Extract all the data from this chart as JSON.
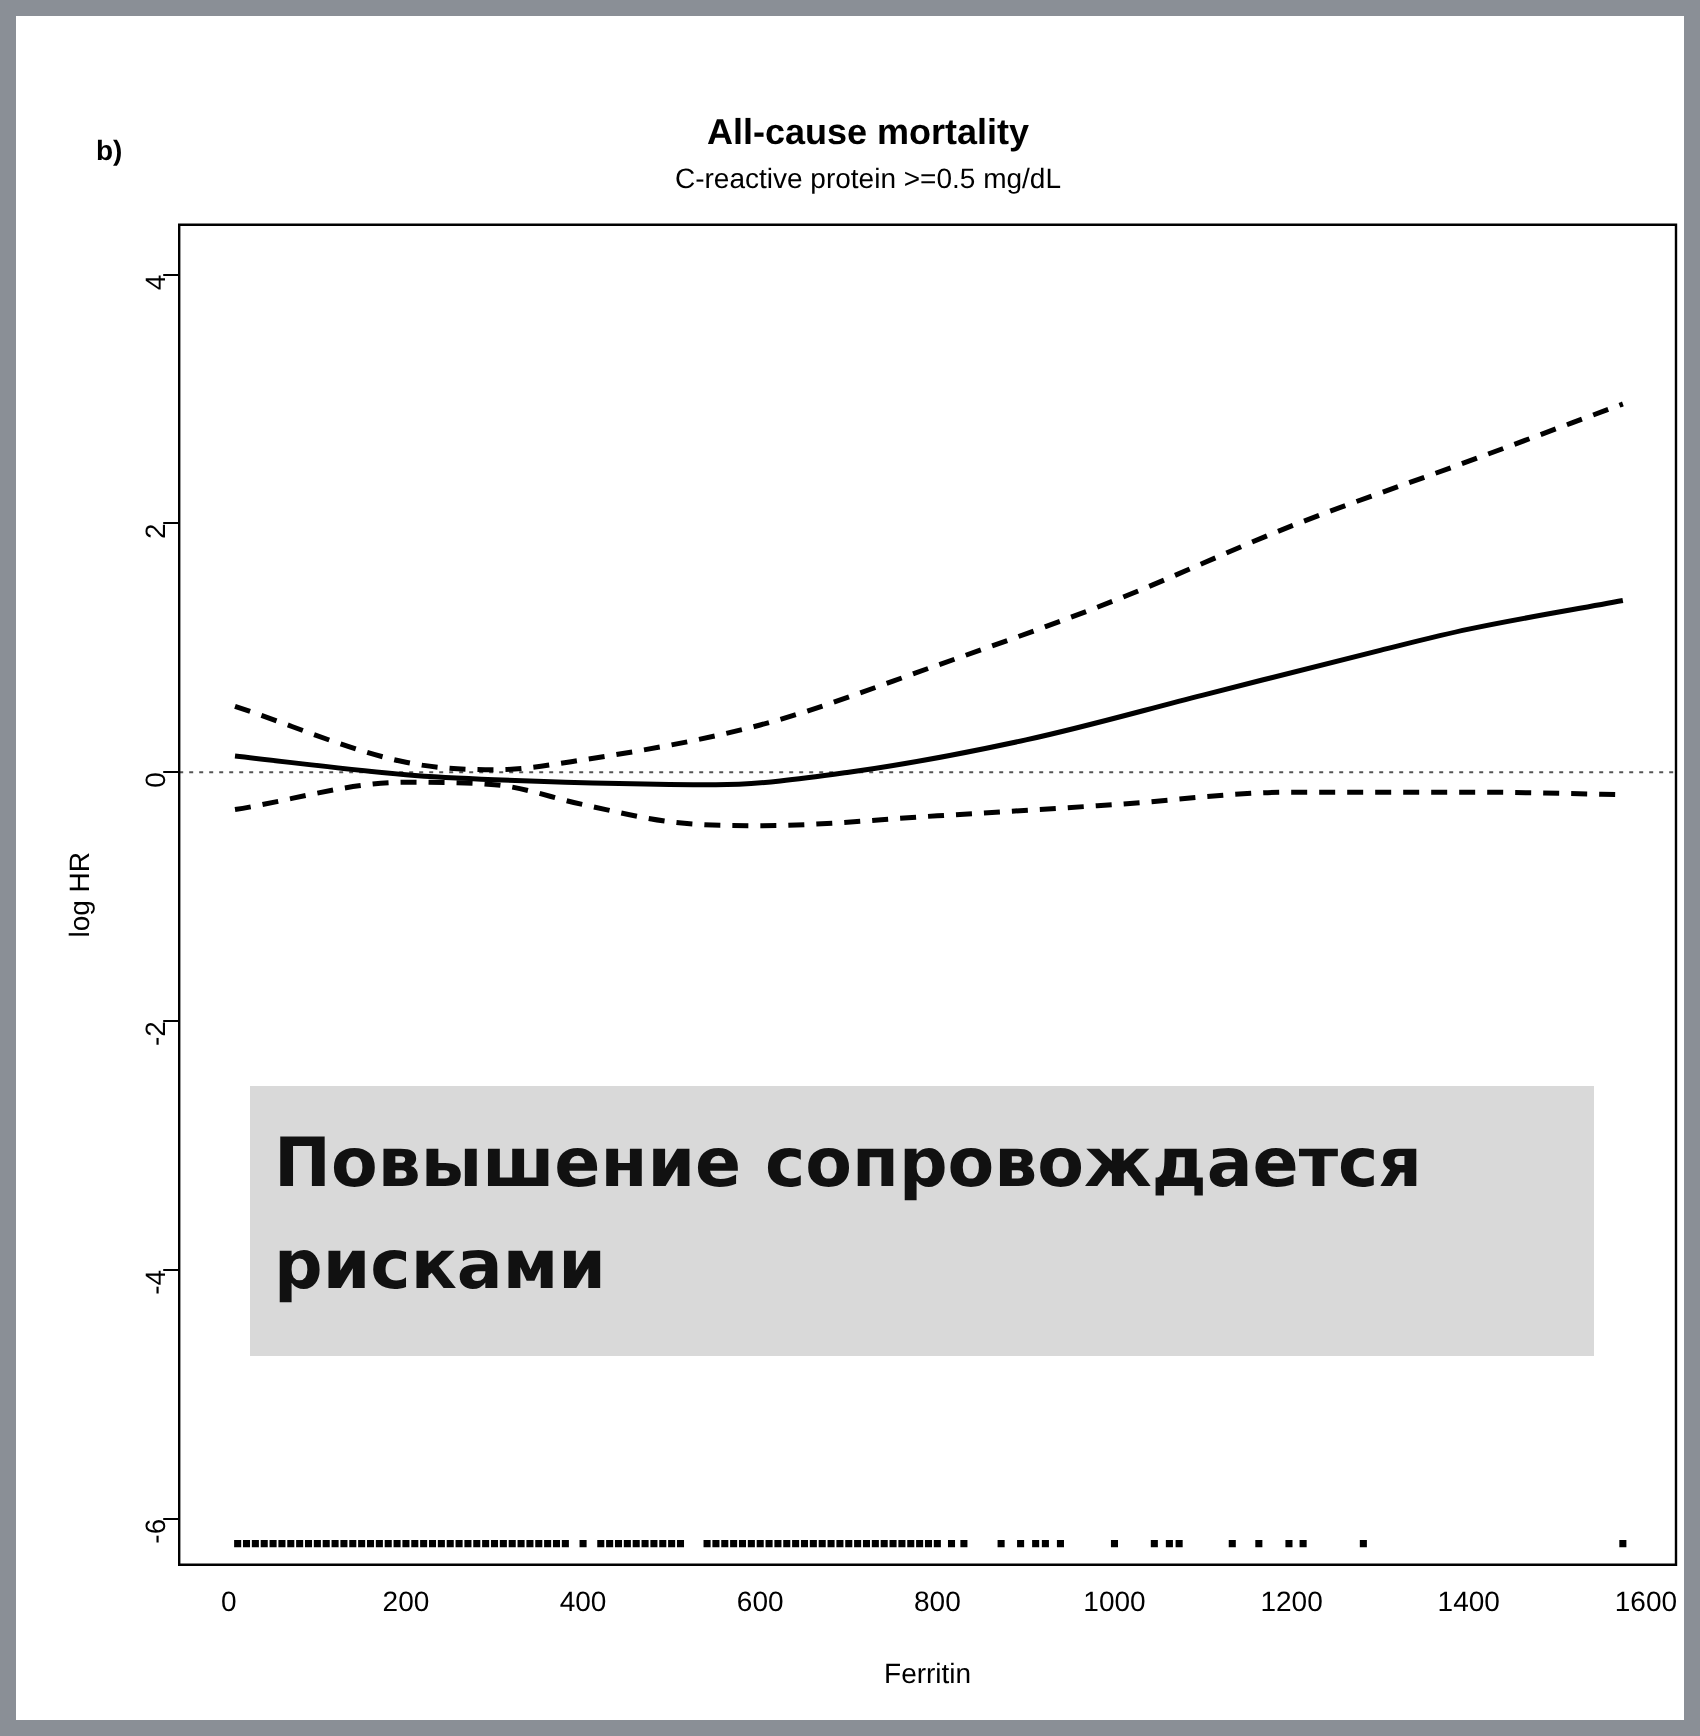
{
  "chart_data": {
    "type": "line",
    "title": "All-cause mortality",
    "subtitle": "C-reactive protein >=0.5 mg/dL",
    "xlabel": "Ferritin",
    "ylabel": "log HR",
    "xlim": [
      -56,
      1634
    ],
    "xticks": [
      0,
      200,
      400,
      600,
      800,
      1000,
      1200,
      1400,
      1600
    ],
    "ylim": [
      -6.37,
      4.4
    ],
    "yticks": [
      -6,
      -4,
      -2,
      0,
      2,
      4
    ],
    "grid": false,
    "legend": false,
    "ref_lines": [
      {
        "axis": "y",
        "value": 0,
        "line_style": "dotted",
        "color": "#555555"
      }
    ],
    "annotations": [
      "b)",
      "Повышение сопровождается рисками"
    ],
    "series": [
      {
        "color": "#000000",
        "line_style": "solid",
        "x": [
          7,
          200,
          300,
          550,
          700,
          900,
          1100,
          1300,
          1400,
          1574
        ],
        "values": [
          0.13,
          -0.02,
          -0.06,
          -0.1,
          0,
          0.26,
          0.62,
          0.98,
          1.15,
          1.38
        ]
      },
      {
        "color": "#000000",
        "line_style": "dashed",
        "x": [
          7,
          200,
          300,
          400,
          600,
          800,
          1000,
          1200,
          1400,
          1574
        ],
        "values": [
          0.53,
          0.08,
          0.02,
          0.1,
          0.38,
          0.86,
          1.38,
          1.98,
          2.5,
          2.96
        ]
      },
      {
        "color": "#000000",
        "line_style": "dashed",
        "x": [
          7,
          200,
          300,
          400,
          500,
          600,
          800,
          1000,
          1200,
          1400,
          1574
        ],
        "values": [
          -0.3,
          -0.08,
          -0.1,
          -0.26,
          -0.4,
          -0.43,
          -0.35,
          -0.26,
          -0.16,
          -0.16,
          -0.18
        ]
      },
      {
        "type": "scatter",
        "color": "#000000",
        "x": [
          10,
          20,
          30,
          40,
          50,
          60,
          70,
          80,
          90,
          100,
          110,
          120,
          130,
          140,
          150,
          160,
          170,
          180,
          190,
          200,
          210,
          220,
          230,
          240,
          250,
          260,
          270,
          280,
          290,
          300,
          310,
          320,
          330,
          340,
          350,
          360,
          370,
          380,
          400,
          420,
          430,
          440,
          450,
          460,
          470,
          480,
          490,
          500,
          510,
          540,
          550,
          560,
          570,
          580,
          590,
          600,
          610,
          620,
          630,
          640,
          650,
          660,
          670,
          680,
          690,
          700,
          710,
          720,
          730,
          740,
          750,
          760,
          770,
          780,
          790,
          800,
          816,
          830,
          872,
          894,
          911,
          922,
          939,
          1000,
          1045,
          1062,
          1073,
          1133,
          1163,
          1197,
          1213,
          1281,
          1574
        ],
        "values": [
          -6.2,
          -6.2,
          -6.2,
          -6.2,
          -6.2,
          -6.2,
          -6.2,
          -6.2,
          -6.2,
          -6.2,
          -6.2,
          -6.2,
          -6.2,
          -6.2,
          -6.2,
          -6.2,
          -6.2,
          -6.2,
          -6.2,
          -6.2,
          -6.2,
          -6.2,
          -6.2,
          -6.2,
          -6.2,
          -6.2,
          -6.2,
          -6.2,
          -6.2,
          -6.2,
          -6.2,
          -6.2,
          -6.2,
          -6.2,
          -6.2,
          -6.2,
          -6.2,
          -6.2,
          -6.2,
          -6.2,
          -6.2,
          -6.2,
          -6.2,
          -6.2,
          -6.2,
          -6.2,
          -6.2,
          -6.2,
          -6.2,
          -6.2,
          -6.2,
          -6.2,
          -6.2,
          -6.2,
          -6.2,
          -6.2,
          -6.2,
          -6.2,
          -6.2,
          -6.2,
          -6.2,
          -6.2,
          -6.2,
          -6.2,
          -6.2,
          -6.2,
          -6.2,
          -6.2,
          -6.2,
          -6.2,
          -6.2,
          -6.2,
          -6.2,
          -6.2,
          -6.2,
          -6.2,
          -6.2,
          -6.2,
          -6.2,
          -6.2,
          -6.2,
          -6.2,
          -6.2,
          -6.2,
          -6.2,
          -6.2,
          -6.2,
          -6.2,
          -6.2,
          -6.2,
          -6.2,
          -6.2,
          -6.2
        ]
      }
    ]
  }
}
